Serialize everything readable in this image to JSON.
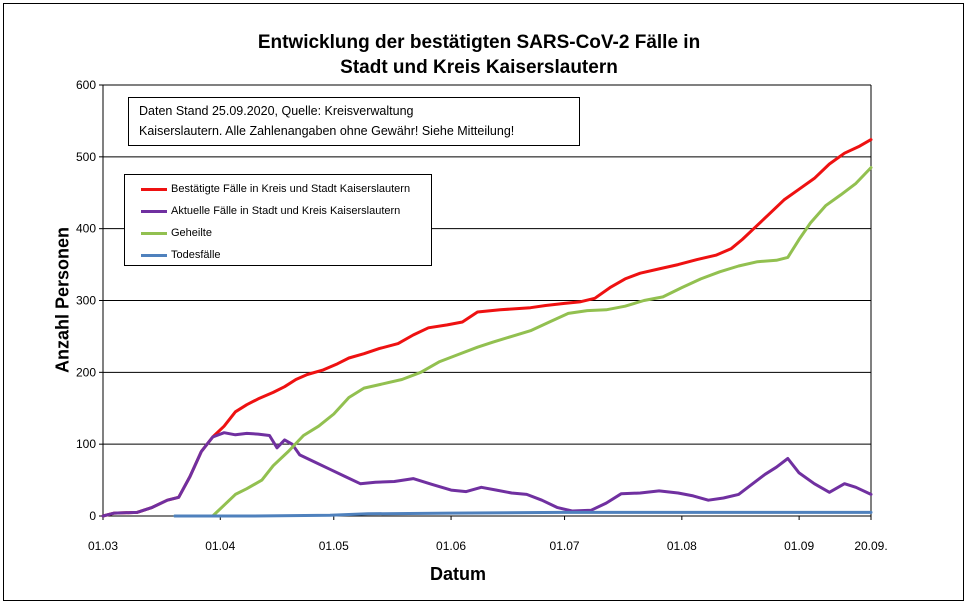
{
  "chart_data": {
    "type": "line",
    "title_lines": [
      "Entwicklung der bestätigten SARS-CoV-2 Fälle in",
      "Stadt und Kreis Kaiserslautern"
    ],
    "xlabel": "Datum",
    "ylabel": "Anzahl Personen",
    "ylim": [
      0,
      600
    ],
    "yticks": [
      0,
      100,
      200,
      300,
      400,
      500,
      600
    ],
    "xlim": [
      "2020-03-01",
      "2020-09-20"
    ],
    "xticks": [
      {
        "date": "2020-03-01",
        "label": "01.03"
      },
      {
        "date": "2020-04-01",
        "label": "01.04"
      },
      {
        "date": "2020-05-01",
        "label": "01.05"
      },
      {
        "date": "2020-06-01",
        "label": "01.06"
      },
      {
        "date": "2020-07-01",
        "label": "01.07"
      },
      {
        "date": "2020-08-01",
        "label": "01.08"
      },
      {
        "date": "2020-09-01",
        "label": "01.09"
      },
      {
        "date": "2020-09-20",
        "label": "20.09."
      }
    ],
    "grid": "horizontal",
    "note": [
      "Daten Stand 25.09.2020, Quelle: Kreisverwaltung",
      "Kaiserslautern. Alle Zahlenangaben ohne Gewähr! Siehe Mitteilung!"
    ],
    "legend_position": "top-left",
    "series": [
      {
        "name": "Bestätigte Fälle in Kreis und Stadt Kaiserslautern",
        "color": "#ee1111",
        "points": [
          [
            "2020-03-01",
            0
          ],
          [
            "2020-03-04",
            4
          ],
          [
            "2020-03-10",
            5
          ],
          [
            "2020-03-14",
            12
          ],
          [
            "2020-03-18",
            22
          ],
          [
            "2020-03-21",
            26
          ],
          [
            "2020-03-24",
            55
          ],
          [
            "2020-03-27",
            90
          ],
          [
            "2020-03-30",
            110
          ],
          [
            "2020-04-02",
            125
          ],
          [
            "2020-04-05",
            145
          ],
          [
            "2020-04-08",
            155
          ],
          [
            "2020-04-11",
            163
          ],
          [
            "2020-04-15",
            172
          ],
          [
            "2020-04-18",
            180
          ],
          [
            "2020-04-21",
            190
          ],
          [
            "2020-04-24",
            197
          ],
          [
            "2020-04-28",
            203
          ],
          [
            "2020-05-02",
            212
          ],
          [
            "2020-05-05",
            220
          ],
          [
            "2020-05-09",
            226
          ],
          [
            "2020-05-13",
            233
          ],
          [
            "2020-05-18",
            240
          ],
          [
            "2020-05-22",
            252
          ],
          [
            "2020-05-26",
            262
          ],
          [
            "2020-05-31",
            266
          ],
          [
            "2020-06-04",
            270
          ],
          [
            "2020-06-08",
            284
          ],
          [
            "2020-06-14",
            287
          ],
          [
            "2020-06-22",
            290
          ],
          [
            "2020-06-26",
            293
          ],
          [
            "2020-07-01",
            296
          ],
          [
            "2020-07-05",
            298
          ],
          [
            "2020-07-09",
            303
          ],
          [
            "2020-07-13",
            318
          ],
          [
            "2020-07-17",
            330
          ],
          [
            "2020-07-21",
            338
          ],
          [
            "2020-07-26",
            344
          ],
          [
            "2020-07-31",
            350
          ],
          [
            "2020-08-05",
            357
          ],
          [
            "2020-08-10",
            363
          ],
          [
            "2020-08-14",
            372
          ],
          [
            "2020-08-17",
            385
          ],
          [
            "2020-08-20",
            400
          ],
          [
            "2020-08-24",
            420
          ],
          [
            "2020-08-28",
            440
          ],
          [
            "2020-09-01",
            455
          ],
          [
            "2020-09-05",
            470
          ],
          [
            "2020-09-09",
            490
          ],
          [
            "2020-09-13",
            505
          ],
          [
            "2020-09-17",
            515
          ],
          [
            "2020-09-20",
            524
          ]
        ]
      },
      {
        "name": "Aktuelle Fälle in Stadt und Kreis Kaiserslautern",
        "color": "#7030a0",
        "points": [
          [
            "2020-03-01",
            0
          ],
          [
            "2020-03-04",
            4
          ],
          [
            "2020-03-10",
            5
          ],
          [
            "2020-03-14",
            12
          ],
          [
            "2020-03-18",
            22
          ],
          [
            "2020-03-21",
            26
          ],
          [
            "2020-03-24",
            55
          ],
          [
            "2020-03-27",
            90
          ],
          [
            "2020-03-30",
            110
          ],
          [
            "2020-04-02",
            116
          ],
          [
            "2020-04-05",
            113
          ],
          [
            "2020-04-08",
            115
          ],
          [
            "2020-04-11",
            114
          ],
          [
            "2020-04-14",
            112
          ],
          [
            "2020-04-16",
            95
          ],
          [
            "2020-04-18",
            106
          ],
          [
            "2020-04-20",
            100
          ],
          [
            "2020-04-22",
            85
          ],
          [
            "2020-04-26",
            75
          ],
          [
            "2020-04-30",
            65
          ],
          [
            "2020-05-04",
            55
          ],
          [
            "2020-05-08",
            45
          ],
          [
            "2020-05-12",
            47
          ],
          [
            "2020-05-17",
            48
          ],
          [
            "2020-05-22",
            52
          ],
          [
            "2020-05-27",
            44
          ],
          [
            "2020-06-01",
            36
          ],
          [
            "2020-06-05",
            34
          ],
          [
            "2020-06-09",
            40
          ],
          [
            "2020-06-13",
            36
          ],
          [
            "2020-06-17",
            32
          ],
          [
            "2020-06-21",
            30
          ],
          [
            "2020-06-25",
            22
          ],
          [
            "2020-06-29",
            12
          ],
          [
            "2020-07-03",
            7
          ],
          [
            "2020-07-08",
            8
          ],
          [
            "2020-07-12",
            18
          ],
          [
            "2020-07-16",
            31
          ],
          [
            "2020-07-21",
            32
          ],
          [
            "2020-07-26",
            35
          ],
          [
            "2020-07-31",
            32
          ],
          [
            "2020-08-04",
            28
          ],
          [
            "2020-08-08",
            22
          ],
          [
            "2020-08-12",
            25
          ],
          [
            "2020-08-16",
            30
          ],
          [
            "2020-08-19",
            42
          ],
          [
            "2020-08-23",
            58
          ],
          [
            "2020-08-26",
            68
          ],
          [
            "2020-08-29",
            80
          ],
          [
            "2020-09-01",
            60
          ],
          [
            "2020-09-05",
            45
          ],
          [
            "2020-09-09",
            33
          ],
          [
            "2020-09-13",
            45
          ],
          [
            "2020-09-16",
            40
          ],
          [
            "2020-09-20",
            30
          ]
        ]
      },
      {
        "name": "Geheilte",
        "color": "#92c050",
        "points": [
          [
            "2020-03-20",
            0
          ],
          [
            "2020-03-30",
            0
          ],
          [
            "2020-04-02",
            15
          ],
          [
            "2020-04-05",
            30
          ],
          [
            "2020-04-08",
            38
          ],
          [
            "2020-04-12",
            50
          ],
          [
            "2020-04-15",
            70
          ],
          [
            "2020-04-19",
            90
          ],
          [
            "2020-04-23",
            112
          ],
          [
            "2020-04-27",
            125
          ],
          [
            "2020-05-01",
            142
          ],
          [
            "2020-05-05",
            165
          ],
          [
            "2020-05-09",
            178
          ],
          [
            "2020-05-14",
            184
          ],
          [
            "2020-05-19",
            190
          ],
          [
            "2020-05-24",
            200
          ],
          [
            "2020-05-29",
            215
          ],
          [
            "2020-06-03",
            225
          ],
          [
            "2020-06-08",
            235
          ],
          [
            "2020-06-12",
            242
          ],
          [
            "2020-06-17",
            250
          ],
          [
            "2020-06-22",
            258
          ],
          [
            "2020-06-27",
            270
          ],
          [
            "2020-07-02",
            282
          ],
          [
            "2020-07-07",
            286
          ],
          [
            "2020-07-12",
            287
          ],
          [
            "2020-07-17",
            292
          ],
          [
            "2020-07-22",
            300
          ],
          [
            "2020-07-27",
            305
          ],
          [
            "2020-08-01",
            318
          ],
          [
            "2020-08-06",
            330
          ],
          [
            "2020-08-11",
            340
          ],
          [
            "2020-08-16",
            348
          ],
          [
            "2020-08-21",
            354
          ],
          [
            "2020-08-26",
            356
          ],
          [
            "2020-08-29",
            360
          ],
          [
            "2020-09-01",
            385
          ],
          [
            "2020-09-04",
            408
          ],
          [
            "2020-09-08",
            432
          ],
          [
            "2020-09-12",
            447
          ],
          [
            "2020-09-16",
            463
          ],
          [
            "2020-09-20",
            485
          ]
        ]
      },
      {
        "name": "Todesfälle",
        "color": "#4f81bd",
        "points": [
          [
            "2020-03-20",
            0
          ],
          [
            "2020-04-10",
            0
          ],
          [
            "2020-04-30",
            1
          ],
          [
            "2020-05-10",
            3
          ],
          [
            "2020-06-01",
            4
          ],
          [
            "2020-06-30",
            5
          ],
          [
            "2020-09-20",
            5
          ]
        ]
      }
    ]
  }
}
